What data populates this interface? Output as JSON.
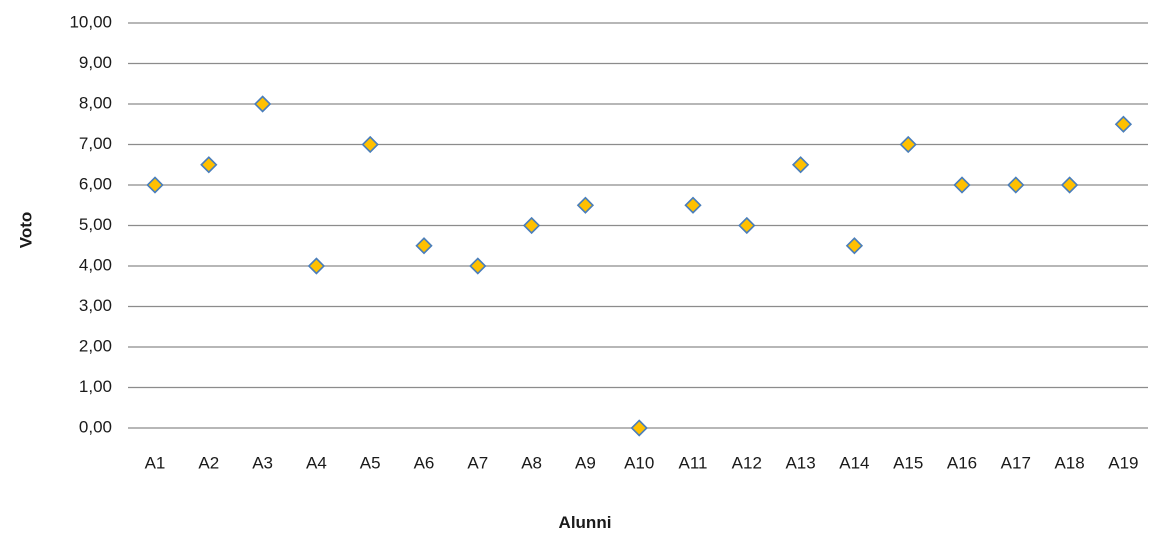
{
  "chart_data": {
    "type": "scatter",
    "title": "",
    "xlabel": "Alunni",
    "ylabel": "Voto",
    "categories": [
      "A1",
      "A2",
      "A3",
      "A4",
      "A5",
      "A6",
      "A7",
      "A8",
      "A9",
      "A10",
      "A11",
      "A12",
      "A13",
      "A14",
      "A15",
      "A16",
      "A17",
      "A18",
      "A19"
    ],
    "values": [
      6.0,
      6.5,
      8.0,
      4.0,
      7.0,
      4.5,
      4.0,
      5.0,
      5.5,
      0.0,
      5.5,
      5.0,
      6.5,
      4.5,
      7.0,
      6.0,
      6.0,
      6.0,
      7.5
    ],
    "ylim": [
      0,
      10
    ],
    "yticks": [
      "0,00",
      "1,00",
      "2,00",
      "3,00",
      "4,00",
      "5,00",
      "6,00",
      "7,00",
      "8,00",
      "9,00",
      "10,00"
    ],
    "grid": true,
    "legend": "none",
    "marker": "diamond",
    "colors": {
      "marker_fill": "#FFC000",
      "marker_stroke": "#4A7EBB",
      "gridline": "#8C8C8C"
    }
  }
}
